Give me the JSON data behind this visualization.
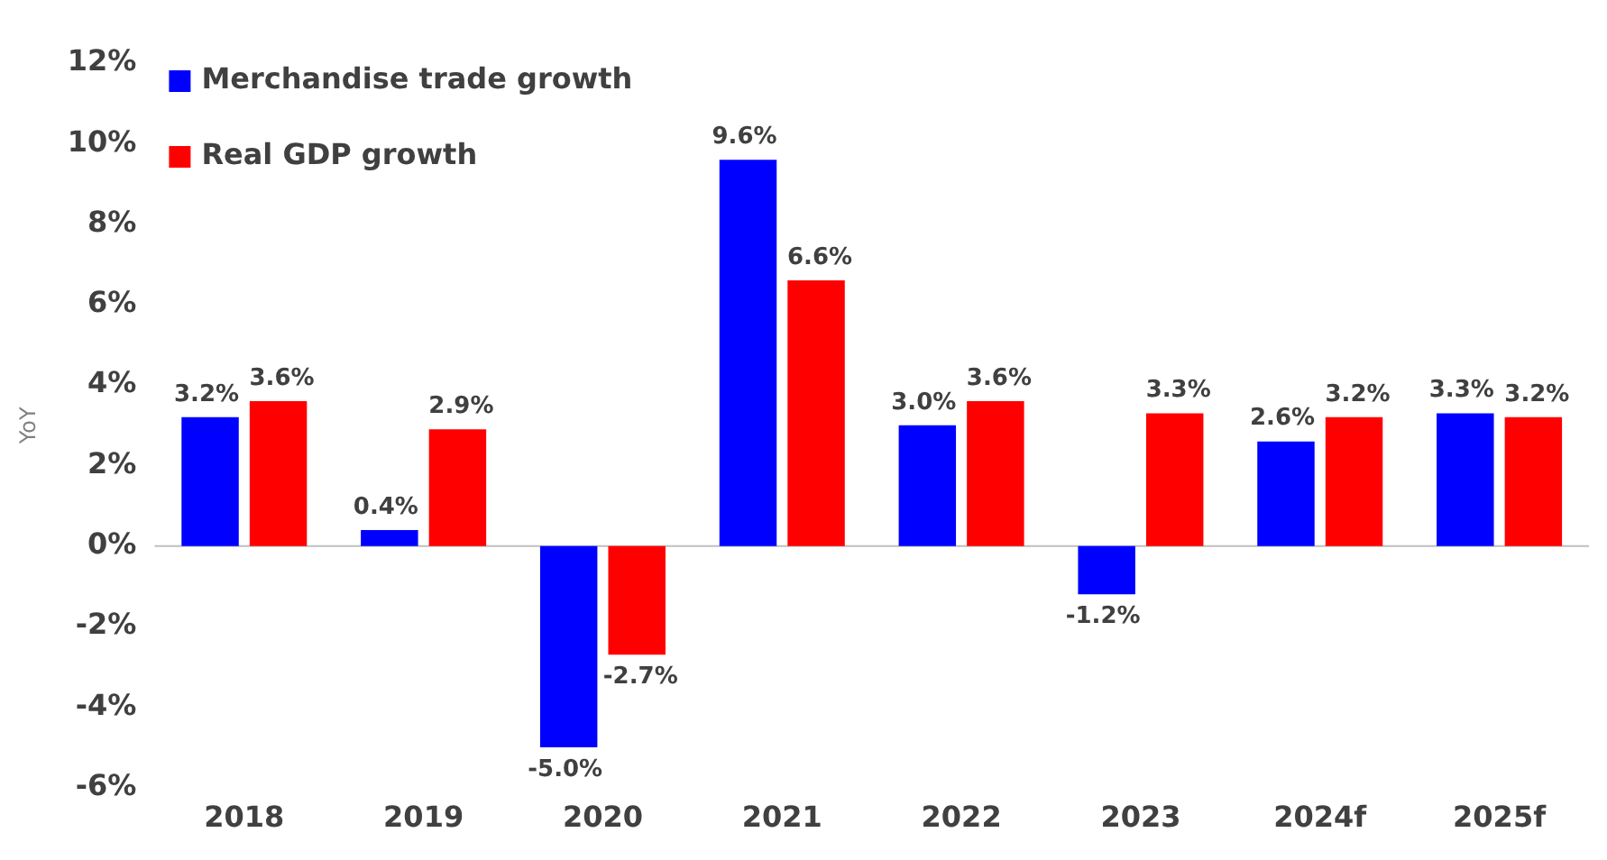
{
  "chart_data": {
    "type": "bar",
    "ylabel": "YoY",
    "categories": [
      "2018",
      "2019",
      "2020",
      "2021",
      "2022",
      "2023",
      "2024f",
      "2025f"
    ],
    "series": [
      {
        "name": "Merchandise trade growth",
        "color": "#0000ff",
        "values": [
          3.2,
          0.4,
          -5.0,
          9.6,
          3.0,
          -1.2,
          2.6,
          3.3
        ],
        "value_labels": [
          "3.2%",
          "0.4%",
          "-5.0%",
          "9.6%",
          "3.0%",
          "-1.2%",
          "2.6%",
          "3.3%"
        ]
      },
      {
        "name": "Real GDP growth",
        "color": "#ff0000",
        "values": [
          3.6,
          2.9,
          -2.7,
          6.6,
          3.6,
          3.3,
          3.2,
          3.2
        ],
        "value_labels": [
          "3.6%",
          "2.9%",
          "-2.7%",
          "6.6%",
          "3.6%",
          "3.3%",
          "3.2%",
          "3.2%"
        ]
      }
    ],
    "ylim": [
      -6,
      12
    ],
    "yticks": [
      {
        "value": -6,
        "label": "-6%"
      },
      {
        "value": -4,
        "label": "-4%"
      },
      {
        "value": -2,
        "label": "-2%"
      },
      {
        "value": 0,
        "label": "0%"
      },
      {
        "value": 2,
        "label": "2%"
      },
      {
        "value": 4,
        "label": "4%"
      },
      {
        "value": 6,
        "label": "6%"
      },
      {
        "value": 8,
        "label": "8%"
      },
      {
        "value": 10,
        "label": "10%"
      },
      {
        "value": 12,
        "label": "12%"
      }
    ],
    "ref_lines": [
      {
        "axis": "y",
        "value": 0,
        "color": "#bfbfbf"
      }
    ],
    "grid": false,
    "legend": "top left"
  }
}
